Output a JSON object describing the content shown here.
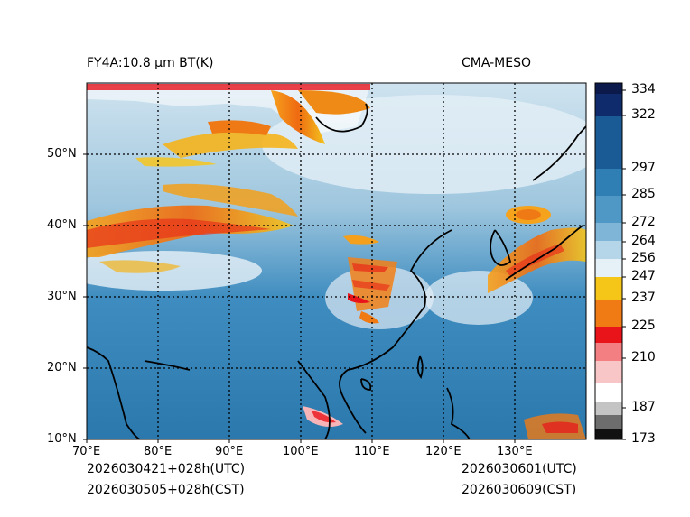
{
  "header": {
    "title_left": "FY4A:10.8 µm BT(K)",
    "title_right": "CMA-MESO"
  },
  "footer": {
    "init_utc": "2026030421+028h(UTC)",
    "init_cst": "2026030505+028h(CST)",
    "valid_utc": "2026030601(UTC)",
    "valid_cst": "2026030609(CST)"
  },
  "map": {
    "lon_range": [
      70,
      140
    ],
    "lat_range": [
      10,
      60
    ],
    "lon_labels": [
      "70°E",
      "80°E",
      "90°E",
      "100°E",
      "110°E",
      "120°E",
      "130°E"
    ],
    "lat_labels": [
      "10°N",
      "20°N",
      "30°N",
      "40°N",
      "50°N"
    ]
  },
  "colorbar": {
    "ticks": [
      "334",
      "322",
      "297",
      "285",
      "272",
      "264",
      "256",
      "247",
      "237",
      "225",
      "210",
      "187",
      "173"
    ],
    "colors": {
      "dark_navy": "#0b1a4a",
      "blue": "#2f7fb5",
      "light_blue": "#a9cde3",
      "white": "#ffffff",
      "yellow": "#f5c518",
      "orange": "#f07a14",
      "red": "#e8141a",
      "pink": "#f7b5b8",
      "gray": "#8c8c8c",
      "black": "#000000"
    }
  }
}
